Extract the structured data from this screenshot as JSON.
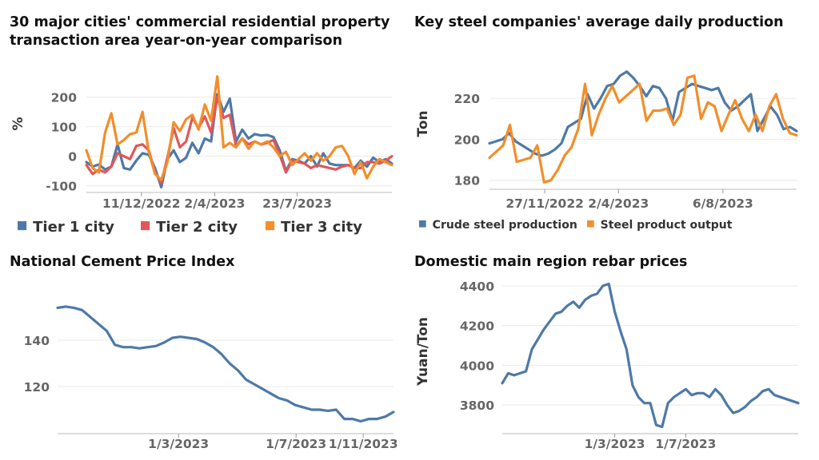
{
  "colors": {
    "tier1": "#4e79a7",
    "tier2": "#e15759",
    "tier3": "#f28e2b",
    "axis": "#666666",
    "grid": "#e9e9e9"
  },
  "chart_data": [
    {
      "id": "tl",
      "type": "line",
      "title_lines": [
        "30 major cities' commercial residential property",
        "transaction area year-on-year comparison"
      ],
      "xlabel": "",
      "ylabel": "%",
      "ylim": [
        -120,
        280
      ],
      "yticks": [
        -100,
        0,
        100,
        200
      ],
      "xticks": [
        {
          "t": 0.18,
          "label": "11/12/2022"
        },
        {
          "t": 0.42,
          "label": "2/4/2023"
        },
        {
          "t": 0.69,
          "label": "23/7/2023"
        }
      ],
      "grid": true,
      "legend_position": "bottom",
      "series": [
        {
          "name": "Tier 1 city",
          "color": "#4e79a7",
          "values": [
            -20,
            -35,
            -28,
            -45,
            -35,
            40,
            -40,
            -45,
            -15,
            10,
            5,
            -40,
            -105,
            -10,
            20,
            -20,
            -5,
            45,
            10,
            60,
            50,
            210,
            150,
            195,
            50,
            90,
            60,
            75,
            70,
            72,
            65,
            20,
            -50,
            -10,
            -15,
            -25,
            0,
            -35,
            10,
            -25,
            -30,
            -30,
            -30,
            -40,
            -15,
            -35,
            -5,
            -20,
            -10,
            -25
          ]
        },
        {
          "name": "Tier 2 city",
          "color": "#e15759",
          "values": [
            -30,
            -60,
            -45,
            -55,
            -35,
            10,
            0,
            -10,
            35,
            40,
            20,
            -55,
            -90,
            -5,
            95,
            30,
            50,
            130,
            95,
            135,
            80,
            200,
            130,
            140,
            35,
            60,
            40,
            50,
            40,
            45,
            55,
            5,
            -55,
            -15,
            -20,
            -25,
            -40,
            -30,
            -35,
            -40,
            -45,
            -35,
            -30,
            -40,
            -40,
            -20,
            -20,
            -25,
            -15,
            0
          ]
        },
        {
          "name": "Tier 3 city",
          "color": "#f28e2b",
          "values": [
            20,
            -40,
            -55,
            80,
            145,
            40,
            55,
            75,
            80,
            150,
            15,
            -60,
            -80,
            -20,
            115,
            85,
            125,
            140,
            90,
            175,
            120,
            270,
            30,
            45,
            30,
            60,
            25,
            50,
            40,
            50,
            30,
            0,
            15,
            -30,
            -10,
            10,
            -15,
            10,
            -15,
            0,
            30,
            35,
            0,
            -60,
            -20,
            -75,
            -35,
            -10,
            -20,
            -30
          ]
        }
      ]
    },
    {
      "id": "tr",
      "type": "line",
      "title_lines": [
        "Key steel companies' average daily production"
      ],
      "xlabel": "",
      "ylabel": "Ton",
      "ylim": [
        176,
        236
      ],
      "yticks": [
        180,
        200,
        220
      ],
      "xticks": [
        {
          "t": 0.18,
          "label": "27/11/2022"
        },
        {
          "t": 0.42,
          "label": "2/4/2023"
        },
        {
          "t": 0.76,
          "label": "6/8/2023"
        }
      ],
      "grid": true,
      "legend_position": "bottom",
      "series": [
        {
          "name": "Crude steel production",
          "color": "#4e79a7",
          "values": [
            198,
            199,
            200,
            203,
            199,
            197,
            195,
            193,
            192,
            193,
            195,
            198,
            206,
            208,
            210,
            222,
            215,
            220,
            226,
            227,
            231,
            233,
            230,
            226,
            221,
            226,
            225,
            220,
            209,
            223,
            225,
            227,
            226,
            225,
            224,
            225,
            218,
            214,
            216,
            219,
            222,
            204,
            210,
            216,
            212,
            205,
            206,
            204
          ]
        },
        {
          "name": "Steel product output",
          "color": "#f28e2b",
          "values": [
            191,
            194,
            197,
            207,
            189,
            190,
            191,
            197,
            179,
            180,
            185,
            192,
            196,
            205,
            227,
            202,
            212,
            220,
            226,
            218,
            221,
            224,
            227,
            209,
            214,
            214,
            215,
            207,
            212,
            230,
            231,
            210,
            218,
            216,
            204,
            212,
            219,
            210,
            204,
            212,
            204,
            216,
            222,
            210,
            203,
            202
          ]
        }
      ]
    },
    {
      "id": "bl",
      "type": "line",
      "title_lines": [
        "National Cement Price Index"
      ],
      "xlabel": "",
      "ylabel": "",
      "ylim": [
        100,
        160
      ],
      "yticks": [
        120,
        140
      ],
      "xticks": [
        {
          "t": 0.36,
          "label": "1/3/2023"
        },
        {
          "t": 0.71,
          "label": "1/7/2023"
        },
        {
          "t": 0.91,
          "label": "1/11/2023"
        }
      ],
      "grid": true,
      "legend_position": "none",
      "series": [
        {
          "name": "",
          "color": "#4e79a7",
          "values": [
            154,
            154.5,
            154,
            153,
            150,
            147,
            144,
            138,
            137,
            137,
            136.5,
            137,
            137.5,
            139,
            141,
            141.5,
            141,
            140.5,
            139,
            137,
            134,
            130,
            127,
            123,
            121,
            119,
            117,
            115,
            114,
            112,
            111,
            110,
            110,
            109.5,
            110,
            106,
            106,
            105,
            106,
            106,
            107,
            109
          ]
        }
      ]
    },
    {
      "id": "br",
      "type": "line",
      "title_lines": [
        "Domestic main region rebar prices"
      ],
      "xlabel": "",
      "ylabel": "Yuan/Ton",
      "ylim": [
        3660,
        4440
      ],
      "yticks": [
        3800,
        4000,
        4200,
        4400
      ],
      "xticks": [
        {
          "t": 0.38,
          "label": "1/3/2023"
        },
        {
          "t": 0.62,
          "label": "1/7/2023"
        }
      ],
      "grid": true,
      "legend_position": "none",
      "series": [
        {
          "name": "",
          "color": "#4e79a7",
          "values": [
            3910,
            3960,
            3950,
            3960,
            3970,
            4080,
            4130,
            4180,
            4220,
            4260,
            4270,
            4300,
            4320,
            4290,
            4330,
            4350,
            4360,
            4400,
            4410,
            4270,
            4170,
            4080,
            3900,
            3840,
            3810,
            3810,
            3700,
            3690,
            3810,
            3840,
            3860,
            3880,
            3850,
            3860,
            3860,
            3840,
            3880,
            3850,
            3800,
            3760,
            3770,
            3790,
            3820,
            3840,
            3870,
            3880,
            3850,
            3840,
            3830,
            3820,
            3810
          ]
        }
      ]
    }
  ]
}
